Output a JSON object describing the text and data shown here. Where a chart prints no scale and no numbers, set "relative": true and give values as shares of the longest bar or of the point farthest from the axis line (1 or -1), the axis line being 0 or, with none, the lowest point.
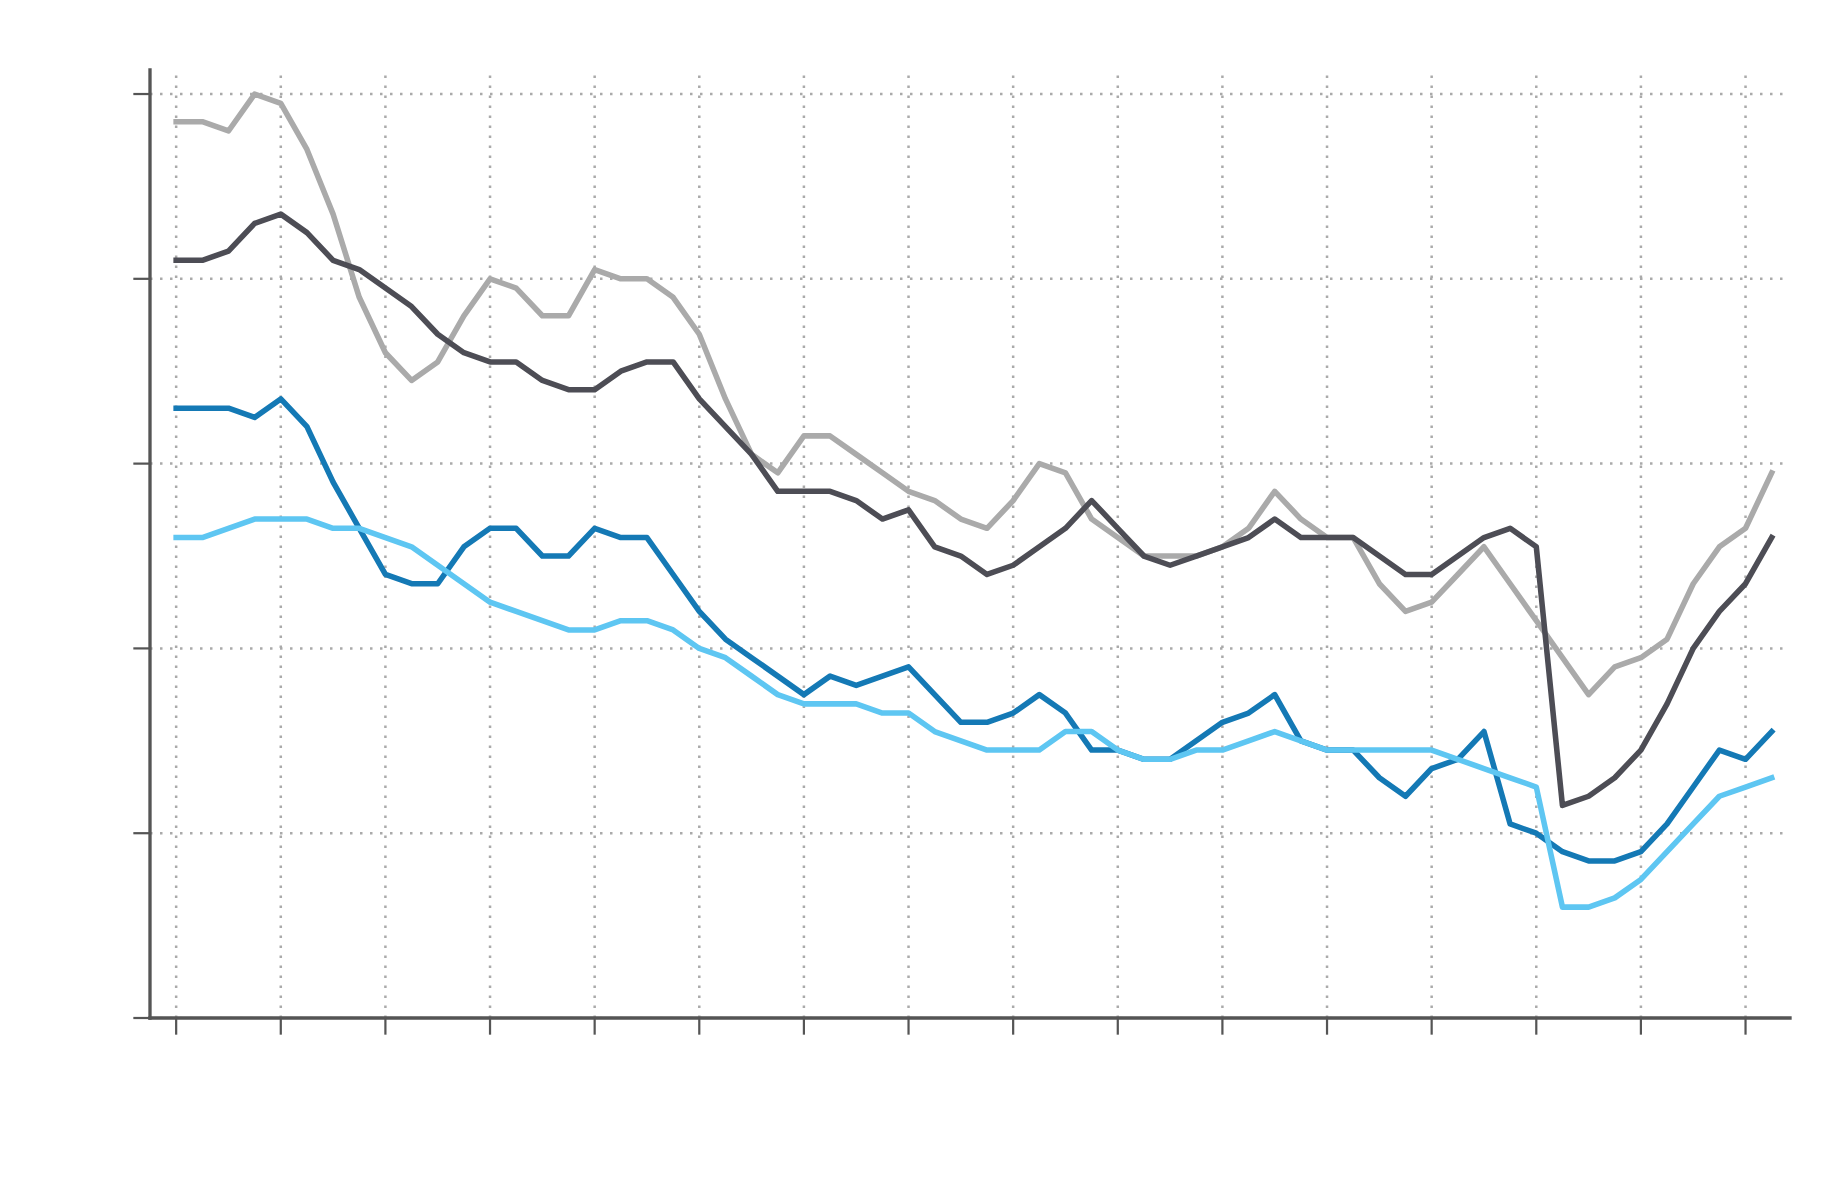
{
  "chart_data": {
    "type": "line",
    "relative": true,
    "grid": true,
    "legend": false,
    "marker": "none",
    "line_style": "solid",
    "tick_labels": false,
    "categories": [
      null,
      null,
      null,
      null,
      null,
      null,
      null,
      null,
      null,
      null,
      null,
      null,
      null,
      null,
      null,
      null,
      null,
      null,
      null,
      null,
      null,
      null,
      null,
      null,
      null,
      null,
      null,
      null,
      null,
      null,
      null,
      null,
      null,
      null,
      null,
      null,
      null,
      null,
      null,
      null,
      null,
      null,
      null,
      null,
      null,
      null,
      null,
      null,
      null,
      null,
      null,
      null,
      null,
      null,
      null,
      null,
      null,
      null,
      null,
      null,
      null,
      null
    ],
    "series": [
      {
        "color": "#aaaaaa",
        "values": [
          0.97,
          0.97,
          0.96,
          1.0,
          0.99,
          0.94,
          0.87,
          0.78,
          0.72,
          0.69,
          0.71,
          0.76,
          0.8,
          0.79,
          0.76,
          0.76,
          0.81,
          0.8,
          0.8,
          0.78,
          0.74,
          0.67,
          0.61,
          0.59,
          0.63,
          0.63,
          0.61,
          0.59,
          0.57,
          0.56,
          0.54,
          0.53,
          0.56,
          0.6,
          0.59,
          0.54,
          0.52,
          0.5,
          0.5,
          0.5,
          0.51,
          0.53,
          0.57,
          0.54,
          0.52,
          0.52,
          0.47,
          0.44,
          0.45,
          0.48,
          0.51,
          0.47,
          0.43,
          0.39,
          0.35,
          0.38,
          0.39,
          0.41,
          0.47,
          0.51,
          0.53,
          0.59
        ]
      },
      {
        "color": "#4d4d55",
        "values": [
          0.82,
          0.82,
          0.83,
          0.86,
          0.87,
          0.85,
          0.82,
          0.81,
          0.79,
          0.77,
          0.74,
          0.72,
          0.71,
          0.71,
          0.69,
          0.68,
          0.68,
          0.7,
          0.71,
          0.71,
          0.67,
          0.64,
          0.61,
          0.57,
          0.57,
          0.57,
          0.56,
          0.54,
          0.55,
          0.51,
          0.5,
          0.48,
          0.49,
          0.51,
          0.53,
          0.56,
          0.53,
          0.5,
          0.49,
          0.5,
          0.51,
          0.52,
          0.54,
          0.52,
          0.52,
          0.52,
          0.5,
          0.48,
          0.48,
          0.5,
          0.52,
          0.53,
          0.51,
          0.23,
          0.24,
          0.26,
          0.29,
          0.34,
          0.4,
          0.44,
          0.47,
          0.52
        ]
      },
      {
        "color": "#1479b5",
        "values": [
          0.66,
          0.66,
          0.66,
          0.65,
          0.67,
          0.64,
          0.58,
          0.53,
          0.48,
          0.47,
          0.47,
          0.51,
          0.53,
          0.53,
          0.5,
          0.5,
          0.53,
          0.52,
          0.52,
          0.48,
          0.44,
          0.41,
          0.39,
          0.37,
          0.35,
          0.37,
          0.36,
          0.37,
          0.38,
          0.35,
          0.32,
          0.32,
          0.33,
          0.35,
          0.33,
          0.29,
          0.29,
          0.28,
          0.28,
          0.3,
          0.32,
          0.33,
          0.35,
          0.3,
          0.29,
          0.29,
          0.26,
          0.24,
          0.27,
          0.28,
          0.31,
          0.21,
          0.2,
          0.18,
          0.17,
          0.17,
          0.18,
          0.21,
          0.25,
          0.29,
          0.28,
          0.31
        ]
      },
      {
        "color": "#5ec6f2",
        "values": [
          0.52,
          0.52,
          0.53,
          0.54,
          0.54,
          0.54,
          0.53,
          0.53,
          0.52,
          0.51,
          0.49,
          0.47,
          0.45,
          0.44,
          0.43,
          0.42,
          0.42,
          0.43,
          0.43,
          0.42,
          0.4,
          0.39,
          0.37,
          0.35,
          0.34,
          0.34,
          0.34,
          0.33,
          0.33,
          0.31,
          0.3,
          0.29,
          0.29,
          0.29,
          0.31,
          0.31,
          0.29,
          0.28,
          0.28,
          0.29,
          0.29,
          0.3,
          0.31,
          0.3,
          0.29,
          0.29,
          0.29,
          0.29,
          0.29,
          0.28,
          0.27,
          0.26,
          0.25,
          0.12,
          0.12,
          0.13,
          0.15,
          0.18,
          0.21,
          0.24,
          0.25,
          0.26
        ]
      }
    ]
  }
}
